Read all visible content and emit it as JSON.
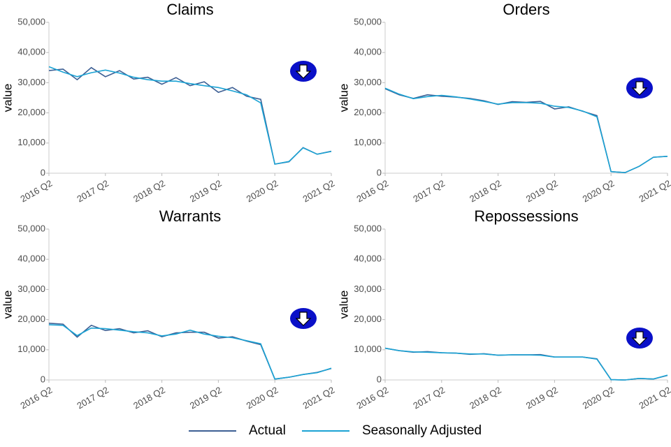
{
  "chart_data": [
    {
      "type": "line",
      "title": "Claims",
      "y_label": "value",
      "categories": [
        "2016 Q2",
        null,
        null,
        null,
        "2017 Q2",
        null,
        null,
        null,
        "2018 Q2",
        null,
        null,
        null,
        "2019 Q2",
        null,
        null,
        null,
        "2020 Q2",
        null,
        null,
        null,
        "2021 Q2"
      ],
      "series": [
        {
          "name": "Actual",
          "color": "#3d5f94",
          "values": [
            34000,
            34500,
            31000,
            35000,
            32000,
            34000,
            31200,
            31800,
            29500,
            31700,
            29000,
            30300,
            26800,
            28400,
            25500,
            24500,
            3000,
            3800,
            8500,
            6300,
            7300
          ]
        },
        {
          "name": "Seasonally Adjusted",
          "color": "#1ba3d4",
          "values": [
            35300,
            33500,
            32000,
            33300,
            34200,
            33200,
            31800,
            31000,
            30500,
            30500,
            29700,
            29000,
            28400,
            27300,
            26000,
            23300,
            3000,
            3900,
            8400,
            6300,
            7200
          ]
        }
      ],
      "ylim": [
        0,
        50000
      ],
      "yticks": [
        {
          "value": 0,
          "label": "0"
        },
        {
          "value": 10000,
          "label": "10,000"
        },
        {
          "value": 20000,
          "label": "20,000"
        },
        {
          "value": 30000,
          "label": "30,000"
        },
        {
          "value": 40000,
          "label": "40,000"
        },
        {
          "value": 50000,
          "label": "50,000"
        }
      ]
    },
    {
      "type": "line",
      "title": "Orders",
      "y_label": "value",
      "categories": [
        "2016 Q2",
        null,
        null,
        null,
        "2017 Q2",
        null,
        null,
        null,
        "2018 Q2",
        null,
        null,
        null,
        "2019 Q2",
        null,
        null,
        null,
        "2020 Q2",
        null,
        null,
        null,
        "2021 Q2"
      ],
      "series": [
        {
          "name": "Actual",
          "color": "#3d5f94",
          "values": [
            28000,
            26000,
            24800,
            26000,
            25500,
            25200,
            24800,
            24000,
            22800,
            23700,
            23500,
            23800,
            21300,
            22000,
            20500,
            19100,
            500,
            200,
            2300,
            5300,
            5600
          ]
        },
        {
          "name": "Seasonally Adjusted",
          "color": "#1ba3d4",
          "values": [
            28200,
            26200,
            24700,
            25400,
            25800,
            25300,
            24600,
            23800,
            22900,
            23400,
            23400,
            23200,
            22200,
            21800,
            20600,
            18700,
            500,
            200,
            2300,
            5300,
            5600
          ]
        }
      ],
      "ylim": [
        0,
        50000
      ],
      "yticks": [
        {
          "value": 0,
          "label": "0"
        },
        {
          "value": 10000,
          "label": "10,000"
        },
        {
          "value": 20000,
          "label": "20,000"
        },
        {
          "value": 30000,
          "label": "30,000"
        },
        {
          "value": 40000,
          "label": "40,000"
        },
        {
          "value": 50000,
          "label": "50,000"
        }
      ]
    },
    {
      "type": "line",
      "title": "Warrants",
      "y_label": "value",
      "categories": [
        "2016 Q2",
        null,
        null,
        null,
        "2017 Q2",
        null,
        null,
        null,
        "2018 Q2",
        null,
        null,
        null,
        "2019 Q2",
        null,
        null,
        null,
        "2020 Q2",
        null,
        null,
        null,
        "2021 Q2"
      ],
      "series": [
        {
          "name": "Actual",
          "color": "#3d5f94",
          "values": [
            18800,
            18500,
            14200,
            18100,
            16400,
            17000,
            15600,
            16300,
            14300,
            15600,
            15800,
            15800,
            13900,
            14300,
            12900,
            11700,
            300,
            900,
            1800,
            2500,
            3800
          ]
        },
        {
          "name": "Seasonally Adjusted",
          "color": "#1ba3d4",
          "values": [
            18300,
            18100,
            14700,
            17200,
            17000,
            16500,
            16000,
            15600,
            14600,
            15200,
            16500,
            15200,
            14500,
            14000,
            13000,
            12000,
            300,
            900,
            1800,
            2400,
            3900
          ]
        }
      ],
      "ylim": [
        0,
        50000
      ],
      "yticks": [
        {
          "value": 0,
          "label": "0"
        },
        {
          "value": 10000,
          "label": "10,000"
        },
        {
          "value": 20000,
          "label": "20,000"
        },
        {
          "value": 30000,
          "label": "30,000"
        },
        {
          "value": 40000,
          "label": "40,000"
        },
        {
          "value": 50000,
          "label": "50,000"
        }
      ]
    },
    {
      "type": "line",
      "title": "Repossessions",
      "y_label": "value",
      "categories": [
        "2016 Q2",
        null,
        null,
        null,
        "2017 Q2",
        null,
        null,
        null,
        "2018 Q2",
        null,
        null,
        null,
        "2019 Q2",
        null,
        null,
        null,
        "2020 Q2",
        null,
        null,
        null,
        "2021 Q2"
      ],
      "series": [
        {
          "name": "Actual",
          "color": "#3d5f94",
          "values": [
            10500,
            9700,
            9200,
            9400,
            9000,
            8900,
            8500,
            8700,
            8200,
            8300,
            8300,
            8400,
            7600,
            7600,
            7600,
            7000,
            100,
            0,
            500,
            300,
            1500
          ]
        },
        {
          "name": "Seasonally Adjusted",
          "color": "#1ba3d4",
          "values": [
            10500,
            9700,
            9300,
            9200,
            9000,
            8900,
            8600,
            8600,
            8200,
            8300,
            8300,
            8200,
            7600,
            7600,
            7600,
            6900,
            100,
            0,
            500,
            300,
            1600
          ]
        }
      ],
      "ylim": [
        0,
        50000
      ],
      "yticks": [
        {
          "value": 0,
          "label": "0"
        },
        {
          "value": 10000,
          "label": "10,000"
        },
        {
          "value": 20000,
          "label": "20,000"
        },
        {
          "value": 30000,
          "label": "30,000"
        },
        {
          "value": 40000,
          "label": "40,000"
        },
        {
          "value": 50000,
          "label": "50,000"
        }
      ]
    }
  ]
}
